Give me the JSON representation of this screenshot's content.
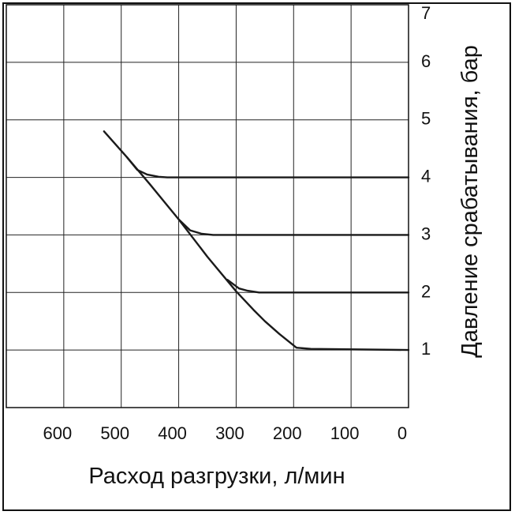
{
  "chart_data": {
    "type": "line",
    "xlabel": "Расход разгрузки, л/мин",
    "ylabel": "Давление срабатывания, бар",
    "xlim": [
      700,
      0
    ],
    "ylim": [
      0,
      7
    ],
    "x_reversed": true,
    "y_axis_position": "right",
    "grid": true,
    "x_ticks": [
      {
        "value": 600,
        "label": "600"
      },
      {
        "value": 500,
        "label": "500"
      },
      {
        "value": 400,
        "label": "400"
      },
      {
        "value": 300,
        "label": "300"
      },
      {
        "value": 200,
        "label": "200"
      },
      {
        "value": 100,
        "label": "100"
      },
      {
        "value": 0,
        "label": "0"
      }
    ],
    "y_ticks": [
      {
        "value": 1,
        "label": "1"
      },
      {
        "value": 2,
        "label": "2"
      },
      {
        "value": 3,
        "label": "3"
      },
      {
        "value": 4,
        "label": "4"
      },
      {
        "value": 5,
        "label": "5"
      },
      {
        "value": 6,
        "label": "6"
      },
      {
        "value": 7,
        "label": "7"
      }
    ],
    "series": [
      {
        "points": [
          [
            530,
            4.8
          ],
          [
            490,
            4.35
          ],
          [
            450,
            3.88
          ],
          [
            400,
            3.27
          ],
          [
            350,
            2.62
          ],
          [
            300,
            2.02
          ],
          [
            270,
            1.7
          ],
          [
            250,
            1.5
          ],
          [
            225,
            1.28
          ],
          [
            195,
            1.04
          ],
          [
            170,
            1.02
          ],
          [
            0,
            1.0
          ]
        ]
      },
      {
        "points": [
          [
            490,
            4.35
          ],
          [
            472,
            4.13
          ],
          [
            455,
            4.05
          ],
          [
            435,
            4.01
          ],
          [
            420,
            4.0
          ],
          [
            0,
            4.0
          ]
        ]
      },
      {
        "points": [
          [
            400,
            3.27
          ],
          [
            380,
            3.08
          ],
          [
            360,
            3.02
          ],
          [
            340,
            3.0
          ],
          [
            0,
            3.0
          ]
        ]
      },
      {
        "points": [
          [
            315,
            2.22
          ],
          [
            295,
            2.07
          ],
          [
            280,
            2.03
          ],
          [
            260,
            2.0
          ],
          [
            0,
            2.0
          ]
        ]
      }
    ],
    "colors": {
      "line": "#1a1a1a",
      "grid": "#222222",
      "frame": "#111111"
    }
  }
}
